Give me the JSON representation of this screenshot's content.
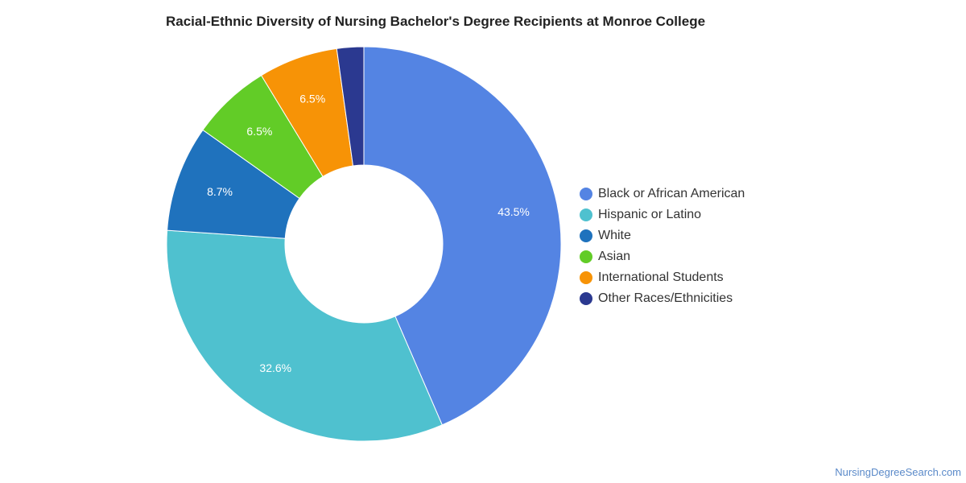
{
  "title": "Racial-Ethnic Diversity of Nursing Bachelor's Degree Recipients at Monroe College",
  "footer": "NursingDegreeSearch.com",
  "chart_data": {
    "type": "pie",
    "donut": true,
    "title": "Racial-Ethnic Diversity of Nursing Bachelor's Degree Recipients at Monroe College",
    "legend_position": "right",
    "slices": [
      {
        "name": "Black or African American",
        "value": 43.5,
        "label": "43.5%",
        "color": "#5484e3"
      },
      {
        "name": "Hispanic or Latino",
        "value": 32.6,
        "label": "32.6%",
        "color": "#4fc1cf"
      },
      {
        "name": "White",
        "value": 8.7,
        "label": "8.7%",
        "color": "#1f72bd"
      },
      {
        "name": "Asian",
        "value": 6.5,
        "label": "6.5%",
        "color": "#62cc27"
      },
      {
        "name": "International Students",
        "value": 6.5,
        "label": "6.5%",
        "color": "#f79306"
      },
      {
        "name": "Other Races/Ethnicities",
        "value": 2.2,
        "label": "",
        "color": "#2b3990"
      }
    ]
  }
}
